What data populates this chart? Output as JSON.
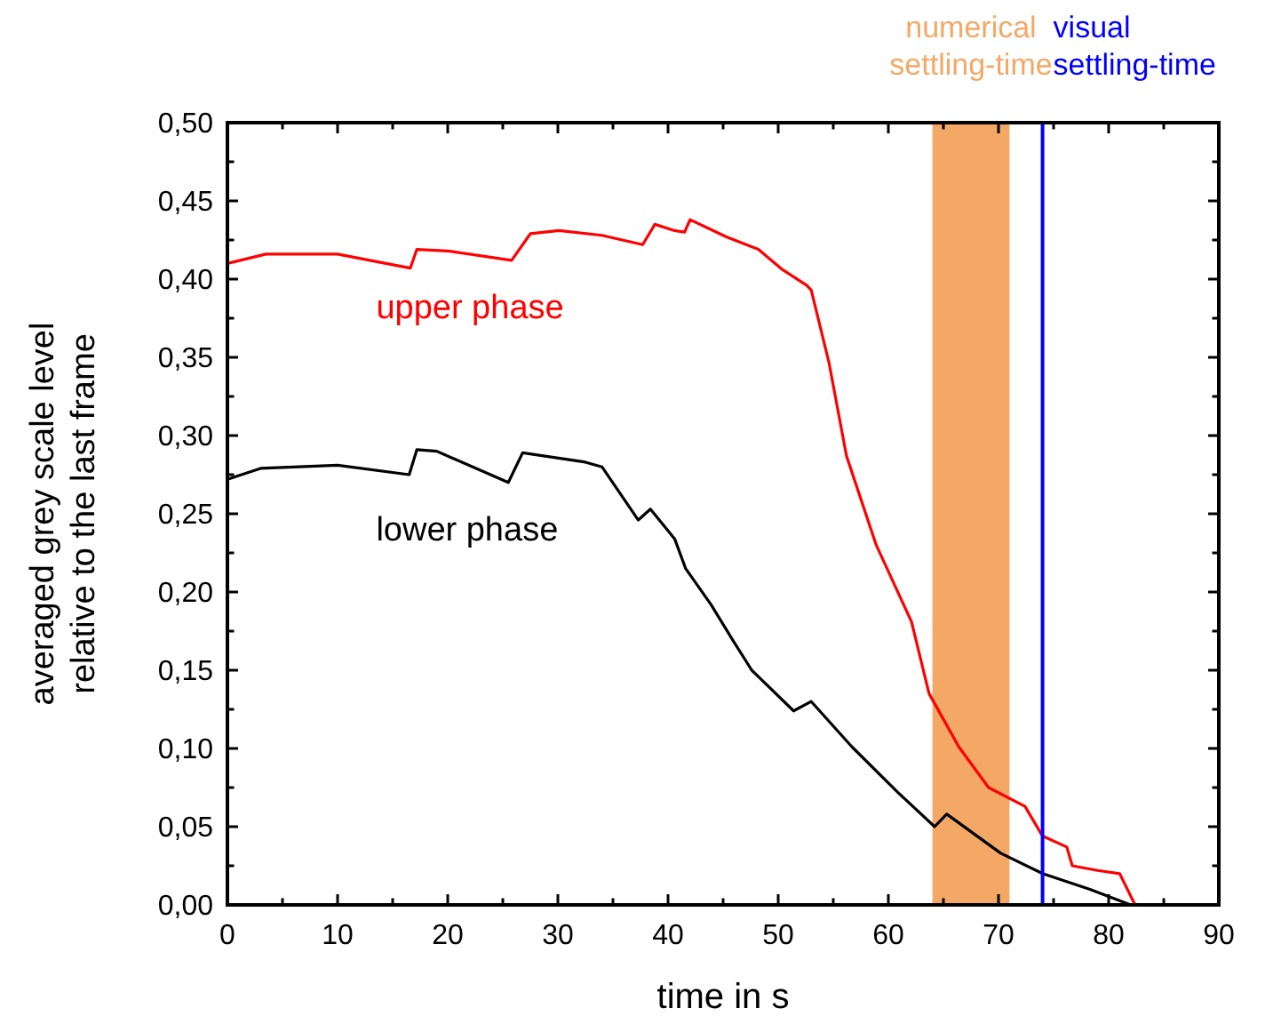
{
  "chart_data": {
    "type": "line",
    "xlabel": "time in s",
    "ylabel": "averaged grey scale level relative to the last frame",
    "xlim": [
      0,
      90
    ],
    "ylim": [
      0,
      0.5
    ],
    "xticks": [
      0,
      {
        "value": 5,
        "label": null
      },
      10,
      {
        "value": 15,
        "label": null
      },
      20,
      {
        "value": 25,
        "label": null
      },
      30,
      {
        "value": 35,
        "label": null
      },
      40,
      {
        "value": 45,
        "label": null
      },
      50,
      {
        "value": 55,
        "label": null
      },
      60,
      {
        "value": 65,
        "label": null
      },
      70,
      {
        "value": 75,
        "label": null
      },
      80,
      {
        "value": 85,
        "label": null
      },
      90
    ],
    "yticks": [
      {
        "value": 0,
        "label": "0,00"
      },
      {
        "value": 0.025,
        "label": null
      },
      {
        "value": 0.05,
        "label": "0,05"
      },
      {
        "value": 0.075,
        "label": null
      },
      {
        "value": 0.1,
        "label": "0,10"
      },
      {
        "value": 0.125,
        "label": null
      },
      {
        "value": 0.15,
        "label": "0,15"
      },
      {
        "value": 0.175,
        "label": null
      },
      {
        "value": 0.2,
        "label": "0,20"
      },
      {
        "value": 0.225,
        "label": null
      },
      {
        "value": 0.25,
        "label": "0,25"
      },
      {
        "value": 0.275,
        "label": null
      },
      {
        "value": 0.3,
        "label": "0,30"
      },
      {
        "value": 0.325,
        "label": null
      },
      {
        "value": 0.35,
        "label": "0,35"
      },
      {
        "value": 0.375,
        "label": null
      },
      {
        "value": 0.4,
        "label": "0,40"
      },
      {
        "value": 0.425,
        "label": null
      },
      {
        "value": 0.45,
        "label": "0,45"
      },
      {
        "value": 0.475,
        "label": null
      },
      {
        "value": 0.5,
        "label": "0,50"
      }
    ],
    "series": [
      {
        "name": "upper phase",
        "color": "#ff0000",
        "x": [
          0,
          3.5,
          10,
          16.6,
          17.2,
          20,
          25.8,
          27.5,
          30.1,
          34,
          37.7,
          38.8,
          40.6,
          41.5,
          42,
          45.3,
          48.2,
          50.4,
          52.6,
          53,
          54.6,
          56.2,
          58.9,
          62.1,
          63.7,
          66.4,
          69.1,
          72.4,
          74,
          76.2,
          76.7,
          79,
          81,
          82.4
        ],
        "values": [
          0.41,
          0.416,
          0.416,
          0.407,
          0.419,
          0.418,
          0.412,
          0.429,
          0.431,
          0.428,
          0.422,
          0.435,
          0.431,
          0.43,
          0.438,
          0.427,
          0.419,
          0.406,
          0.396,
          0.393,
          0.347,
          0.287,
          0.23,
          0.181,
          0.135,
          0.101,
          0.075,
          0.063,
          0.044,
          0.037,
          0.025,
          0.022,
          0.02,
          0
        ]
      },
      {
        "name": "lower phase",
        "color": "#000000",
        "x": [
          0,
          3,
          10,
          16.5,
          17.2,
          19,
          25.5,
          26.8,
          32.5,
          34,
          37.3,
          38.4,
          40.6,
          41.6,
          43.9,
          45.9,
          47.6,
          51.4,
          53,
          56.7,
          61,
          64.2,
          65.3,
          70.2,
          74,
          78.3,
          82
        ],
        "values": [
          0.272,
          0.279,
          0.281,
          0.275,
          0.291,
          0.29,
          0.27,
          0.289,
          0.283,
          0.28,
          0.246,
          0.253,
          0.234,
          0.215,
          0.192,
          0.169,
          0.15,
          0.124,
          0.13,
          0.101,
          0.071,
          0.05,
          0.058,
          0.033,
          0.02,
          0.01,
          0
        ]
      }
    ],
    "bands": [
      {
        "axis": "x",
        "from": 64,
        "to": 71,
        "label": "numerical settling-time",
        "color": "#f4a866"
      }
    ],
    "ref_lines": [
      {
        "axis": "x",
        "value": 74,
        "label": "visual settling-time",
        "color": "#0000ff"
      }
    ],
    "grid": false,
    "marker": "none",
    "line_style": "solid"
  }
}
